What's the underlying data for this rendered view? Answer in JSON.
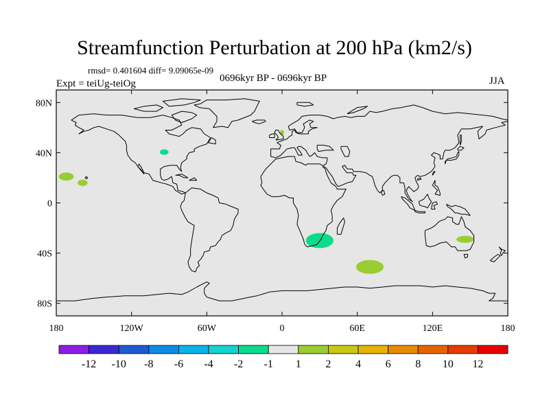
{
  "header": {
    "title": "Streamfunction Perturbation at 200 hPa (km2/s)",
    "stats": "rmsd= 0.401604 diff= 9.09065e-09",
    "experiment": "Expt = teiUg-teiOg",
    "period": "0696kyr BP - 0696kyr BP",
    "season": "JJA"
  },
  "colors": {
    "ocean": "#e6e6e6",
    "coast": "#000000",
    "positive_small": "#9acd32",
    "negative_small": "#00d98a"
  },
  "chart_data": {
    "type": "heatmap",
    "projection": "cylindrical-equidistant",
    "title": "Streamfunction Perturbation at 200 hPa (km2/s)",
    "xlim": [
      -180,
      180
    ],
    "ylim": [
      -90,
      90
    ],
    "x_ticks": [
      {
        "value": -180,
        "label": "180"
      },
      {
        "value": -120,
        "label": "120W"
      },
      {
        "value": -60,
        "label": "60W"
      },
      {
        "value": 0,
        "label": "0"
      },
      {
        "value": 60,
        "label": "60E"
      },
      {
        "value": 120,
        "label": "120E"
      },
      {
        "value": 180,
        "label": "180"
      }
    ],
    "y_ticks": [
      {
        "value": 80,
        "label": "80N"
      },
      {
        "value": 40,
        "label": "40N"
      },
      {
        "value": 0,
        "label": "0"
      },
      {
        "value": -40,
        "label": "40S"
      },
      {
        "value": -80,
        "label": "80S"
      }
    ],
    "colorbar": {
      "colors": [
        "#8c1ee6",
        "#3c28d2",
        "#1e5ad2",
        "#0a8ce6",
        "#0ab4e6",
        "#14d2d2",
        "#0adc8c",
        "#e6e6e6",
        "#9acd32",
        "#c8c814",
        "#e6b400",
        "#e68c00",
        "#e66400",
        "#e63c00",
        "#e60000"
      ],
      "labels": [
        "-12",
        "-10",
        "-8",
        "-6",
        "-4",
        "-2",
        "-1",
        "1",
        "2",
        "4",
        "6",
        "8",
        "10",
        "12"
      ]
    },
    "regions": [
      {
        "name": "southern-africa-anomaly",
        "lon": 30,
        "lat": -30,
        "dlon": 11,
        "dlat": 6,
        "color": "#0adc8c"
      },
      {
        "name": "southern-indian-ocean-anomaly",
        "lon": 70,
        "lat": -51,
        "dlon": 11,
        "dlat": 5.5,
        "color": "#9acd32"
      },
      {
        "name": "eastern-australia-anomaly",
        "lon": 146,
        "lat": -29,
        "dlon": 7,
        "dlat": 2.8,
        "color": "#9acd32"
      },
      {
        "name": "hawaii-anomaly",
        "lon": -172,
        "lat": 21,
        "dlon": 6,
        "dlat": 3.2,
        "color": "#9acd32"
      },
      {
        "name": "central-pacific-anomaly",
        "lon": -159,
        "lat": 16,
        "dlon": 4,
        "dlat": 2.5,
        "color": "#9acd32"
      },
      {
        "name": "great-lakes-anomaly",
        "lon": -94,
        "lat": 40.5,
        "dlon": 3.5,
        "dlat": 2.2,
        "color": "#0adc8c"
      },
      {
        "name": "north-sea-anomaly",
        "lon": 0,
        "lat": 56,
        "dlon": 1.6,
        "dlat": 2.2,
        "color": "#9acd32"
      }
    ]
  }
}
